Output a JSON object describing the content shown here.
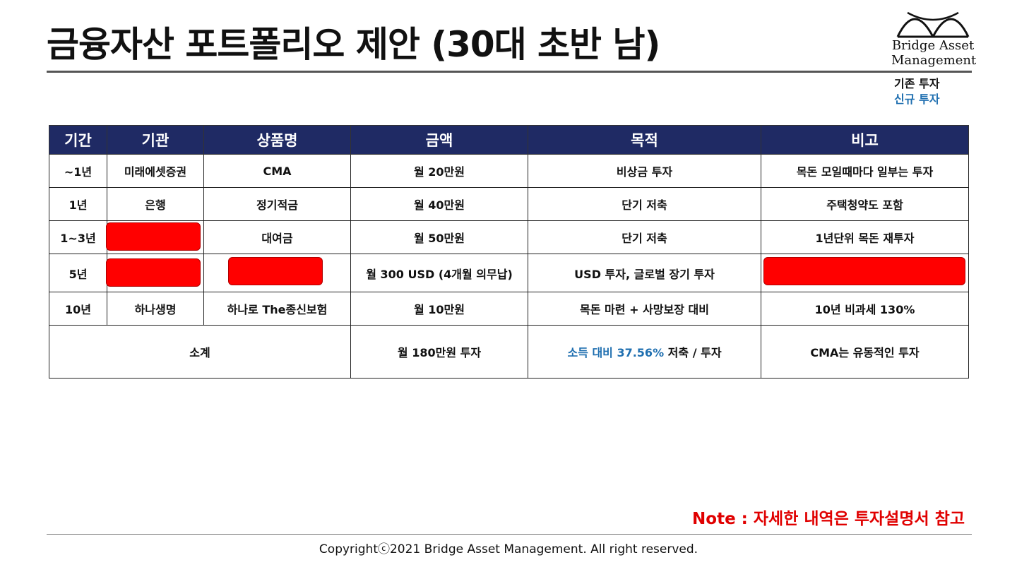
{
  "title": "금융자산 포트폴리오 제안 (30대 초반 남)",
  "logo": {
    "line1": "Bridge Asset",
    "line2": "Management",
    "icon": "bridge-arches-logo"
  },
  "legend": {
    "existing": "기존 투자",
    "new": "신규 투자"
  },
  "colors": {
    "header_bg": "#1f2a64",
    "new_investment": "#1f6fb0",
    "note": "#e00000",
    "redaction": "#ff0000"
  },
  "table": {
    "headers": [
      "기간",
      "기관",
      "상품명",
      "금액",
      "목적",
      "비고"
    ],
    "rows": [
      [
        "~1년",
        "미래에셋증권",
        "CMA",
        "월 20만원",
        "비상금 투자",
        "목돈 모일때마다 일부는 투자"
      ],
      [
        "1년",
        "은행",
        "정기적금",
        "월 40만원",
        "단기 저축",
        "주택청약도 포함"
      ],
      [
        "1~3년",
        "",
        "대여금",
        "월 50만원",
        "단기 저축",
        "1년단위 목돈 재투자"
      ],
      [
        "5년",
        "",
        "",
        "월 300 USD (4개월 의무납)",
        "USD 투자, 글로벌 장기 투자",
        ""
      ],
      [
        "10년",
        "하나생명",
        "하나로 The종신보험",
        "월 10만원",
        "목돈 마련 + 사망보장 대비",
        "10년 비과세 130%"
      ]
    ],
    "subtotal": {
      "label": "소계",
      "amount": "월 180만원 투자",
      "purpose_highlight": "소득 대비 37.56%",
      "purpose_rest": " 저축 / 투자",
      "remark": "CMA는 유동적인 투자"
    }
  },
  "note": "Note : 자세한 내역은 투자설명서 참고",
  "copyright": "Copyrightⓒ2021 Bridge Asset Management. All right reserved."
}
